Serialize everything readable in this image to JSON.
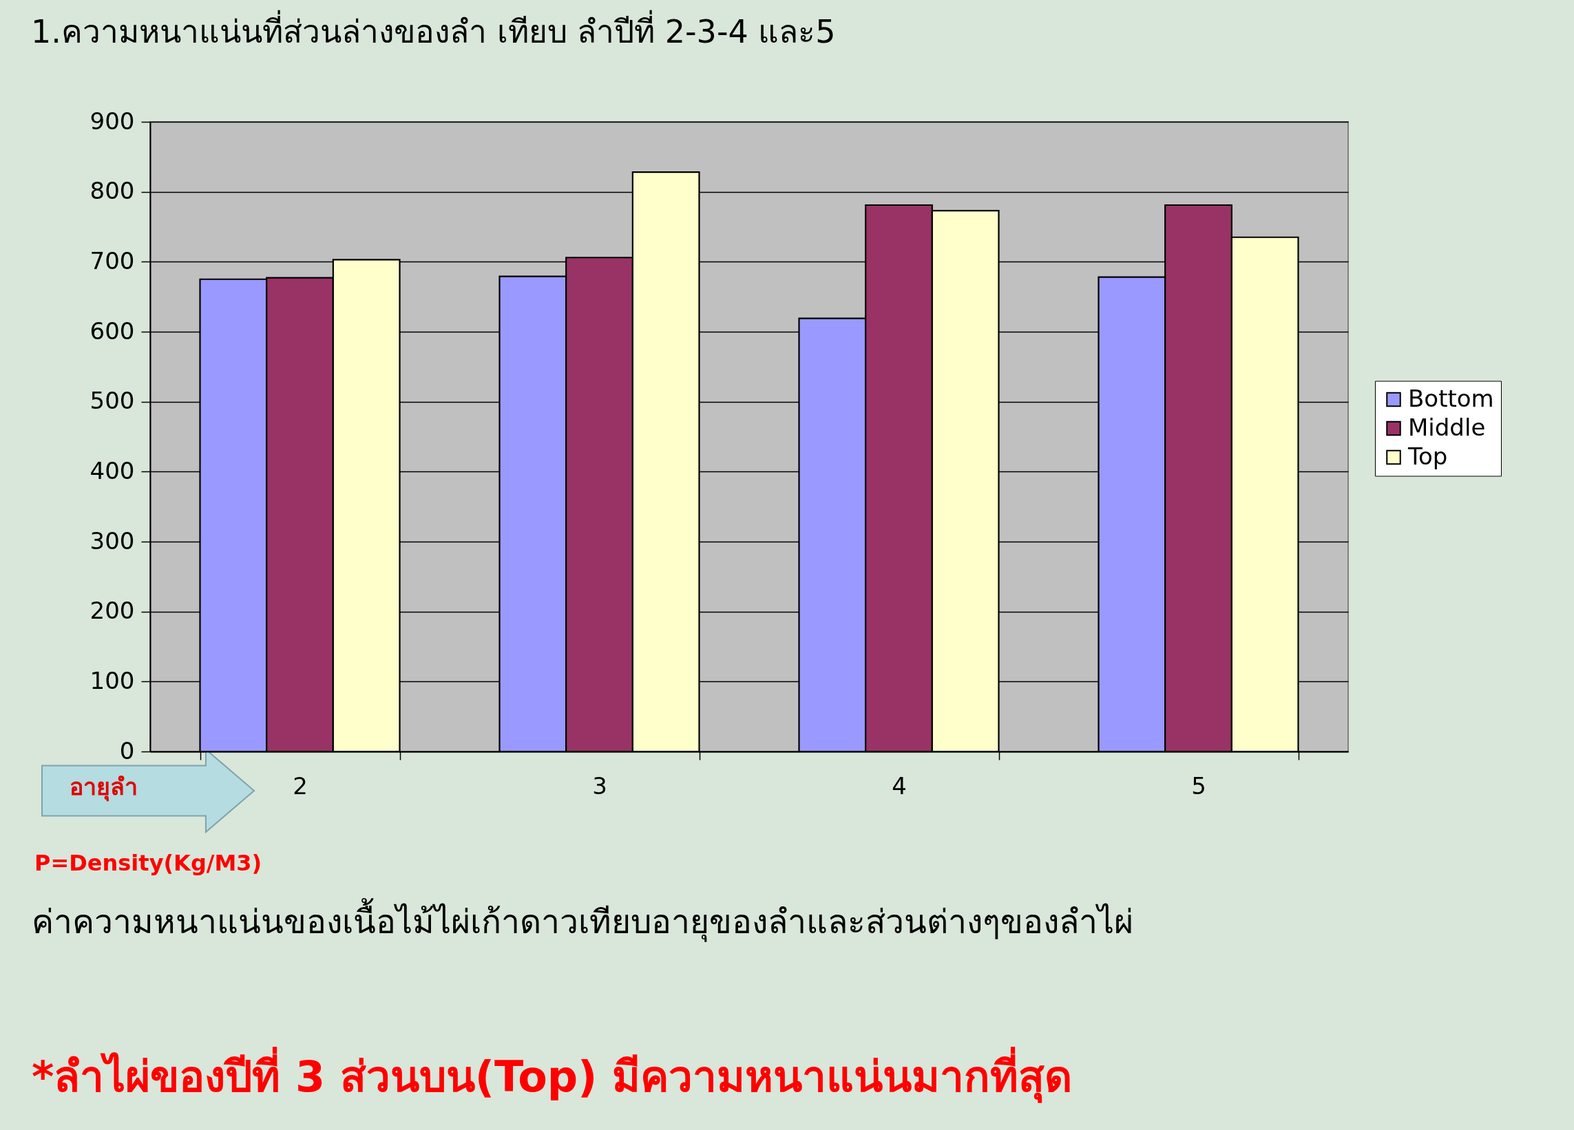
{
  "chart_data": {
    "type": "bar",
    "title": "1.ความหนาแน่นที่ส่วนล่างของลำ เทียบ ลำปีที่ 2-3-4 และ5",
    "xlabel": "อายุลำ",
    "categories": [
      "2",
      "3",
      "4",
      "5"
    ],
    "series": [
      {
        "name": "Bottom",
        "color": "#9999ff",
        "values": [
          675,
          679,
          619,
          678
        ]
      },
      {
        "name": "Middle",
        "color": "#993366",
        "values": [
          677,
          706,
          781,
          781
        ]
      },
      {
        "name": "Top",
        "color": "#ffffcc",
        "values": [
          703,
          828,
          773,
          735
        ]
      }
    ],
    "ylim": [
      0,
      900
    ],
    "yticks": [
      0,
      100,
      200,
      300,
      400,
      500,
      600,
      700,
      800,
      900
    ],
    "grid": "y",
    "legend": "right",
    "annotations": [
      "P=Density(Kg/M3)",
      "ค่าความหนาแน่นของเนื้อไม้ไผ่เก้าดาวเทียบอายุของลำและส่วนต่างๆของลำไผ่",
      "*ลำไผ่ของปีที่ 3 ส่วนบน(Top) มีความหนาแน่นมากที่สุด"
    ]
  }
}
